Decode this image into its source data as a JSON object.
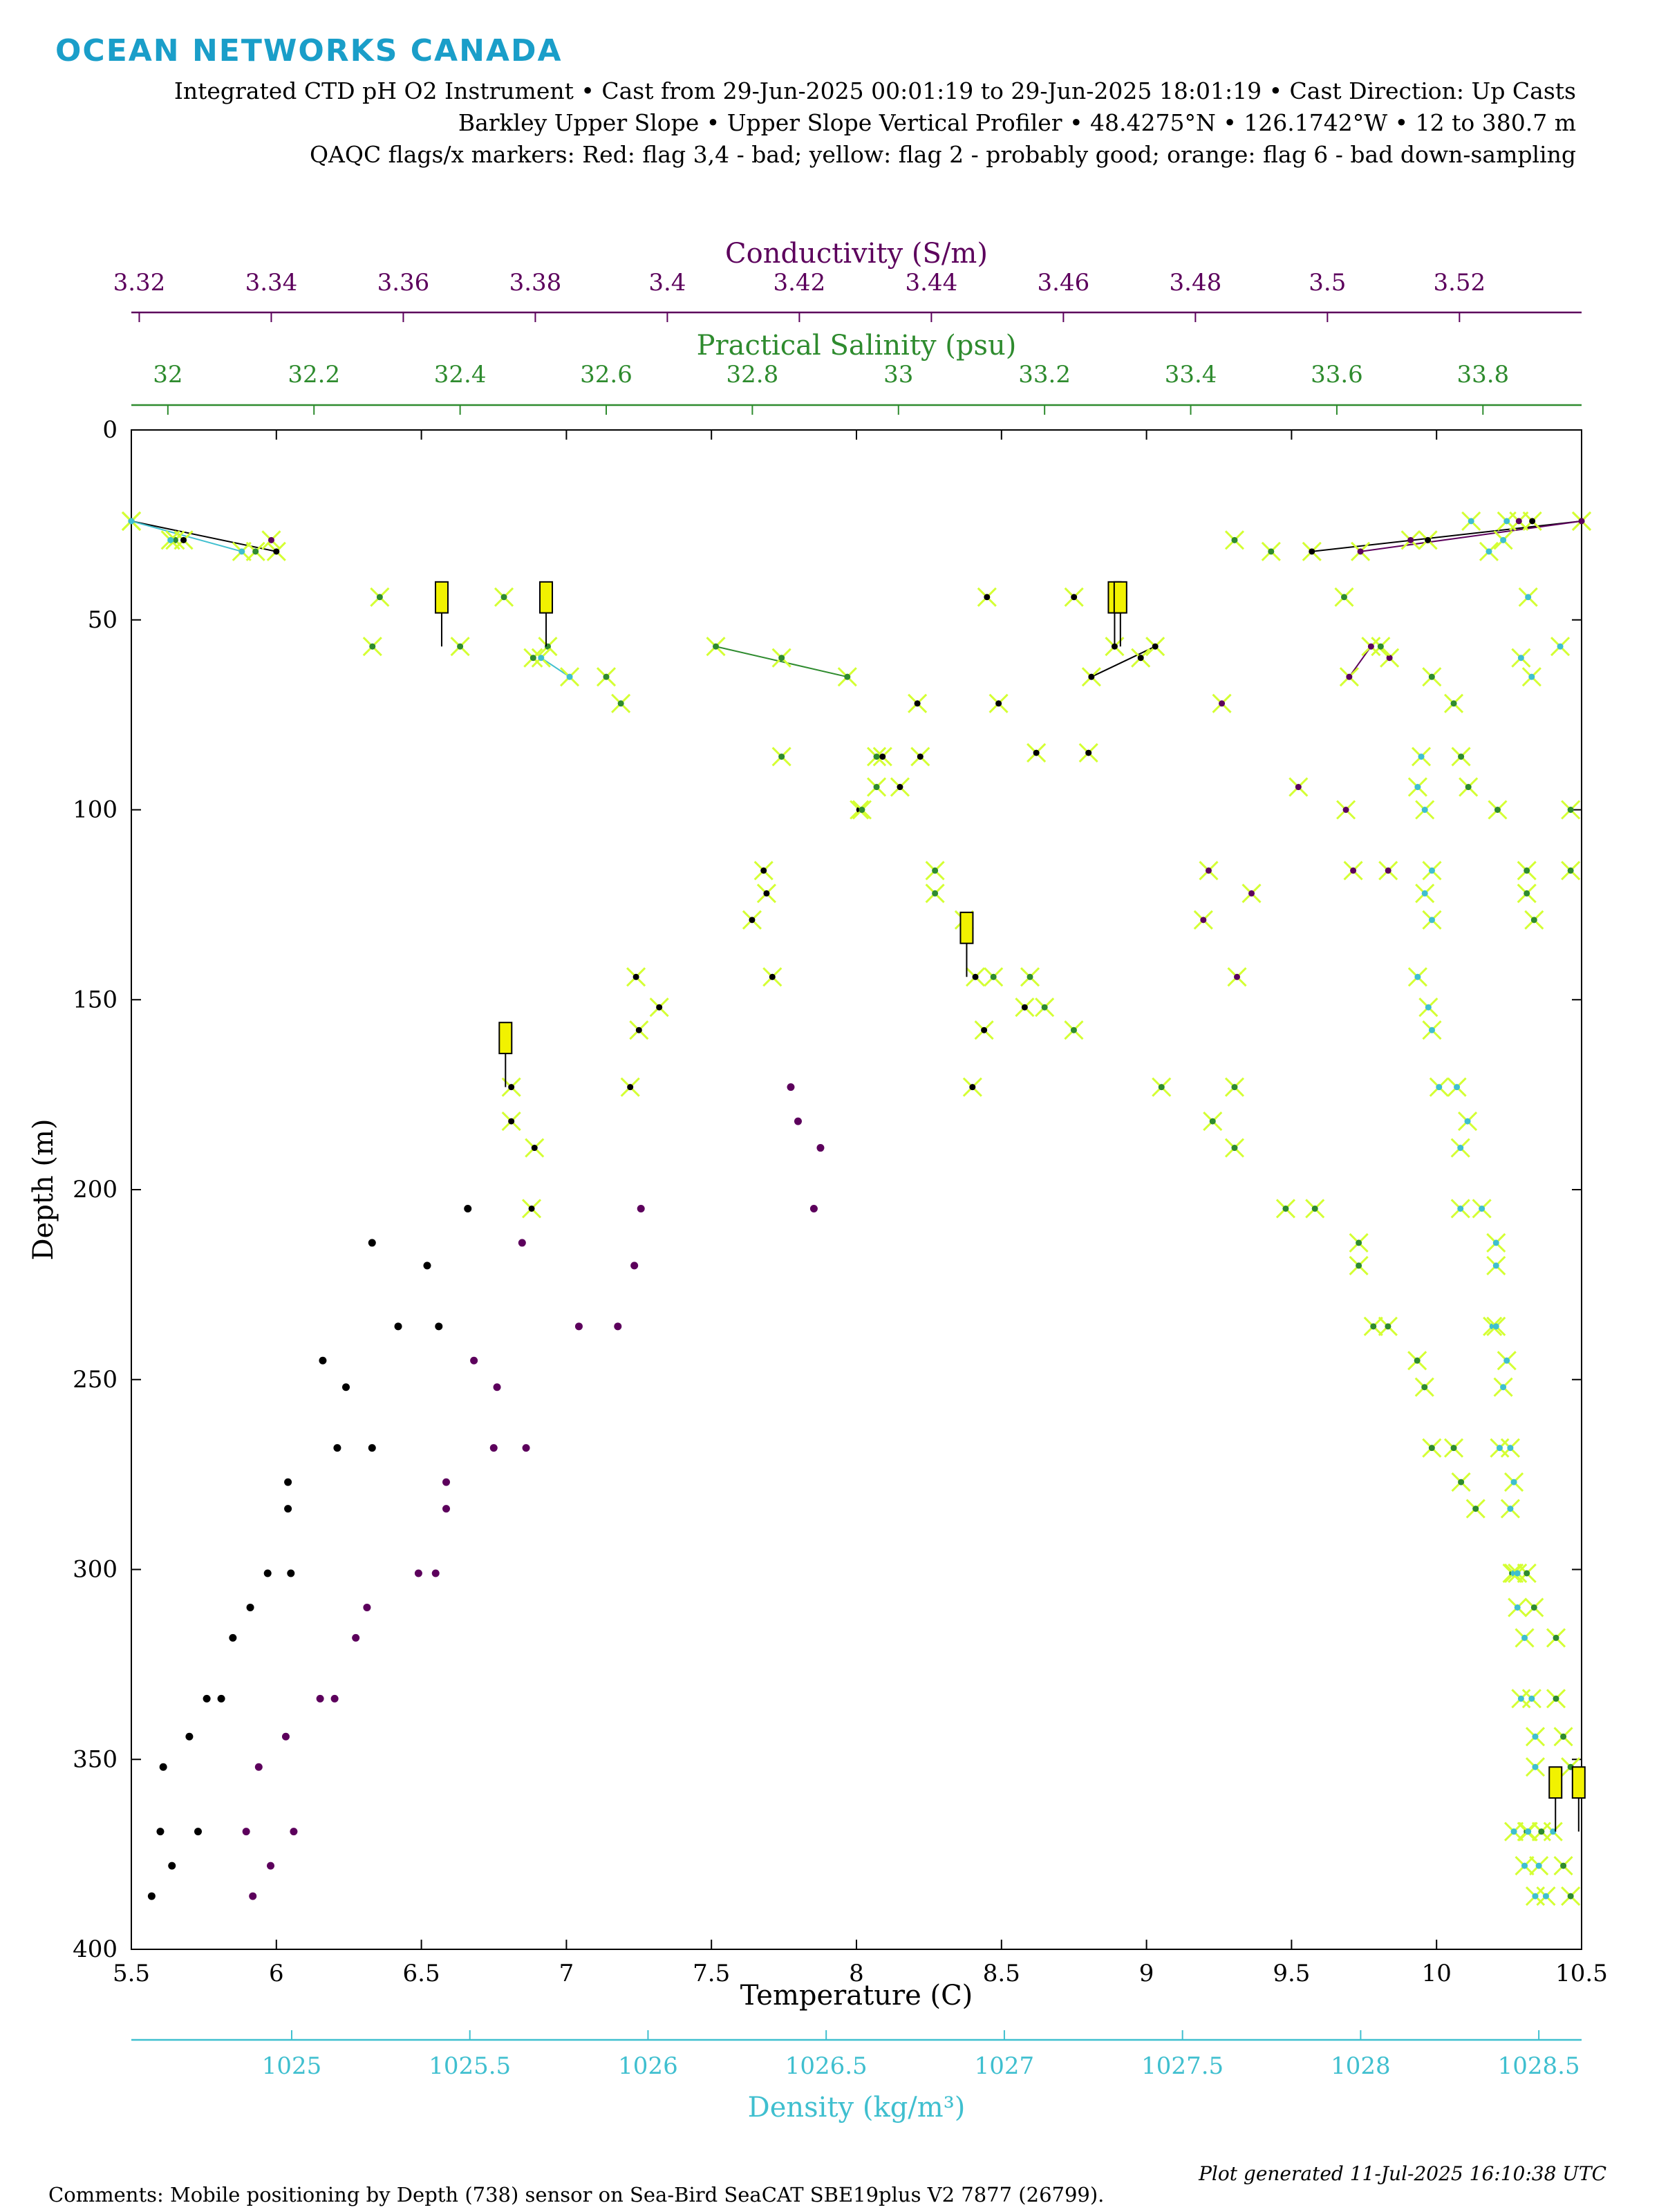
{
  "logo": "OCEAN NETWORKS CANADA",
  "header": {
    "line1": "Integrated CTD pH O2 Instrument • Cast from 29-Jun-2025 00:01:19 to 29-Jun-2025 18:01:19 • Cast Direction: Up Casts",
    "line2": "Barkley Upper Slope • Upper Slope Vertical Profiler • 48.4275°N • 126.1742°W • 12 to 380.7 m",
    "line3": "QAQC flags/x markers: Red: flag 3,4 - bad; yellow: flag 2 - probably good; orange: flag 6 - bad down-sampling"
  },
  "footer": {
    "comment": "Comments: Mobile positioning by Depth (738) sensor on Sea-Bird SeaCAT SBE19plus V2 7877 (26799).",
    "generated": "Plot generated 11-Jul-2025 16:10:38 UTC"
  },
  "colors": {
    "temperature": "#000000",
    "conductivity": "#5c005c",
    "salinity": "#2e8b2e",
    "density": "#3fbfcf",
    "flag_yellow": "#f2f200",
    "flag_good_cross": "#d4ff33"
  },
  "chart_data": {
    "type": "scatter",
    "title": "",
    "ylabel": "Depth (m)",
    "ylim": [
      0,
      400
    ],
    "y_reversed": true,
    "y_ticks": [
      "0",
      "50",
      "100",
      "150",
      "200",
      "250",
      "300",
      "350",
      "400"
    ],
    "axes": {
      "temperature": {
        "label": "Temperature (C)",
        "range": [
          5.5,
          10.5
        ],
        "ticks": [
          "5.5",
          "6",
          "6.5",
          "7",
          "7.5",
          "8",
          "8.5",
          "9",
          "9.5",
          "10",
          "10.5"
        ]
      },
      "conductivity": {
        "label": "Conductivity (S/m)",
        "range": [
          3.3188,
          3.5385
        ],
        "ticks": [
          "3.32",
          "3.34",
          "3.36",
          "3.38",
          "3.4",
          "3.42",
          "3.44",
          "3.46",
          "3.48",
          "3.5",
          "3.52"
        ]
      },
      "salinity": {
        "label": "Practical Salinity (psu)",
        "range": [
          31.95,
          33.935
        ],
        "ticks": [
          "32",
          "32.2",
          "32.4",
          "32.6",
          "32.8",
          "33",
          "33.2",
          "33.4",
          "33.6",
          "33.8"
        ]
      },
      "density": {
        "label": "Density (kg/m³)",
        "range": [
          1024.55,
          1028.62
        ],
        "ticks": [
          "1025",
          "1025.5",
          "1026",
          "1026.5",
          "1027",
          "1027.5",
          "1028",
          "1028.5"
        ]
      }
    },
    "series": [
      {
        "name": "Temperature",
        "axis": "temperature",
        "flagged": false,
        "points": [
          [
            6.33,
            214
          ],
          [
            6.66,
            205
          ],
          [
            6.52,
            220
          ],
          [
            6.42,
            236
          ],
          [
            6.56,
            236
          ],
          [
            6.16,
            245
          ],
          [
            6.24,
            252
          ],
          [
            6.21,
            268
          ],
          [
            6.33,
            268
          ],
          [
            6.04,
            277
          ],
          [
            6.04,
            284
          ],
          [
            5.97,
            301
          ],
          [
            6.05,
            301
          ],
          [
            5.91,
            310
          ],
          [
            5.85,
            318
          ],
          [
            5.76,
            334
          ],
          [
            5.81,
            334
          ],
          [
            5.7,
            344
          ],
          [
            5.61,
            352
          ],
          [
            5.6,
            369
          ],
          [
            5.73,
            369
          ],
          [
            5.64,
            378
          ],
          [
            5.57,
            386
          ]
        ],
        "flagged_points": [
          [
            5.5,
            24
          ],
          [
            5.68,
            29
          ],
          [
            6.0,
            32
          ],
          [
            9.57,
            32
          ],
          [
            9.97,
            29
          ],
          [
            10.33,
            24
          ],
          [
            10.5,
            24
          ],
          [
            8.45,
            44
          ],
          [
            8.75,
            44
          ],
          [
            8.89,
            57
          ],
          [
            9.03,
            57
          ],
          [
            8.81,
            65
          ],
          [
            8.98,
            60
          ],
          [
            8.21,
            72
          ],
          [
            8.49,
            72
          ],
          [
            8.62,
            85
          ],
          [
            8.8,
            85
          ],
          [
            8.09,
            86
          ],
          [
            8.22,
            86
          ],
          [
            8.15,
            94
          ],
          [
            8.01,
            100
          ],
          [
            7.64,
            129
          ],
          [
            7.69,
            122
          ],
          [
            7.71,
            144
          ],
          [
            7.68,
            116
          ],
          [
            8.41,
            144
          ],
          [
            8.44,
            158
          ],
          [
            8.58,
            152
          ],
          [
            8.4,
            173
          ],
          [
            7.24,
            144
          ],
          [
            7.32,
            152
          ],
          [
            7.25,
            158
          ],
          [
            7.22,
            173
          ],
          [
            6.81,
            173
          ],
          [
            6.81,
            182
          ],
          [
            6.89,
            189
          ],
          [
            6.88,
            205
          ]
        ]
      },
      {
        "name": "Conductivity",
        "axis": "conductivity",
        "flagged": false,
        "points": [
          [
            3.4187,
            173
          ],
          [
            3.4198,
            182
          ],
          [
            3.4232,
            189
          ],
          [
            3.4222,
            205
          ],
          [
            3.378,
            214
          ],
          [
            3.396,
            205
          ],
          [
            3.395,
            220
          ],
          [
            3.3866,
            236
          ],
          [
            3.3925,
            236
          ],
          [
            3.3707,
            245
          ],
          [
            3.3742,
            252
          ],
          [
            3.3737,
            268
          ],
          [
            3.3786,
            268
          ],
          [
            3.3665,
            277
          ],
          [
            3.3665,
            284
          ],
          [
            3.3623,
            301
          ],
          [
            3.3649,
            301
          ],
          [
            3.3545,
            310
          ],
          [
            3.3528,
            318
          ],
          [
            3.3474,
            334
          ],
          [
            3.3496,
            334
          ],
          [
            3.3422,
            344
          ],
          [
            3.3381,
            352
          ],
          [
            3.3362,
            369
          ],
          [
            3.3434,
            369
          ],
          [
            3.3399,
            378
          ],
          [
            3.3372,
            386
          ]
        ],
        "flagged_points": [
          [
            3.3188,
            24
          ],
          [
            3.34,
            29
          ],
          [
            3.505,
            32
          ],
          [
            3.5126,
            29
          ],
          [
            3.529,
            24
          ],
          [
            3.5385,
            24
          ],
          [
            3.5066,
            57
          ],
          [
            3.5033,
            65
          ],
          [
            3.5094,
            60
          ],
          [
            3.484,
            72
          ],
          [
            3.4956,
            94
          ],
          [
            3.5028,
            100
          ],
          [
            3.482,
            116
          ],
          [
            3.4885,
            122
          ],
          [
            3.4812,
            129
          ],
          [
            3.4863,
            144
          ],
          [
            3.5039,
            116
          ],
          [
            3.5092,
            116
          ]
        ]
      },
      {
        "name": "Practical Salinity",
        "axis": "salinity",
        "flagged": true,
        "points": [
          [
            31.95,
            24
          ],
          [
            32.01,
            29
          ],
          [
            32.12,
            32
          ],
          [
            32.29,
            44
          ],
          [
            32.46,
            44
          ],
          [
            32.28,
            57
          ],
          [
            32.4,
            57
          ],
          [
            32.52,
            57
          ],
          [
            32.5,
            60
          ],
          [
            32.6,
            65
          ],
          [
            32.62,
            72
          ],
          [
            32.75,
            57
          ],
          [
            32.84,
            60
          ],
          [
            32.93,
            65
          ],
          [
            32.84,
            86
          ],
          [
            32.97,
            86
          ],
          [
            32.97,
            94
          ],
          [
            32.95,
            100
          ],
          [
            33.05,
            116
          ],
          [
            33.05,
            122
          ],
          [
            33.09,
            129
          ],
          [
            33.13,
            144
          ],
          [
            33.18,
            144
          ],
          [
            33.2,
            152
          ],
          [
            33.24,
            158
          ],
          [
            33.36,
            173
          ],
          [
            33.46,
            173
          ],
          [
            33.43,
            182
          ],
          [
            33.46,
            189
          ],
          [
            33.53,
            205
          ],
          [
            33.57,
            205
          ],
          [
            33.63,
            214
          ],
          [
            33.63,
            220
          ],
          [
            33.65,
            236
          ],
          [
            33.67,
            236
          ],
          [
            33.71,
            245
          ],
          [
            33.72,
            252
          ],
          [
            33.73,
            268
          ],
          [
            33.76,
            268
          ],
          [
            33.77,
            277
          ],
          [
            33.79,
            284
          ],
          [
            33.84,
            301
          ],
          [
            33.86,
            301
          ],
          [
            33.87,
            310
          ],
          [
            33.9,
            318
          ],
          [
            33.9,
            334
          ],
          [
            33.91,
            344
          ],
          [
            33.92,
            352
          ],
          [
            33.86,
            369
          ],
          [
            33.88,
            369
          ],
          [
            33.91,
            378
          ],
          [
            33.92,
            386
          ],
          [
            33.46,
            29
          ],
          [
            33.51,
            32
          ],
          [
            33.61,
            44
          ],
          [
            33.66,
            57
          ],
          [
            33.73,
            65
          ],
          [
            33.76,
            72
          ],
          [
            33.77,
            86
          ],
          [
            33.78,
            94
          ],
          [
            33.82,
            100
          ],
          [
            33.86,
            116
          ],
          [
            33.86,
            122
          ],
          [
            33.87,
            129
          ],
          [
            33.92,
            116
          ],
          [
            33.92,
            100
          ]
        ]
      },
      {
        "name": "Density",
        "axis": "density",
        "flagged": true,
        "points": [
          [
            1028.31,
            24
          ],
          [
            1028.41,
            24
          ],
          [
            1028.4,
            29
          ],
          [
            1028.36,
            32
          ],
          [
            1028.47,
            44
          ],
          [
            1028.56,
            57
          ],
          [
            1028.45,
            60
          ],
          [
            1028.48,
            65
          ],
          [
            1028.17,
            86
          ],
          [
            1028.16,
            94
          ],
          [
            1028.18,
            100
          ],
          [
            1028.2,
            116
          ],
          [
            1028.18,
            122
          ],
          [
            1028.2,
            129
          ],
          [
            1028.16,
            144
          ],
          [
            1028.19,
            152
          ],
          [
            1028.2,
            158
          ],
          [
            1028.22,
            173
          ],
          [
            1028.27,
            173
          ],
          [
            1028.3,
            182
          ],
          [
            1028.28,
            189
          ],
          [
            1028.28,
            205
          ],
          [
            1028.34,
            205
          ],
          [
            1028.38,
            214
          ],
          [
            1028.38,
            220
          ],
          [
            1028.37,
            236
          ],
          [
            1028.38,
            236
          ],
          [
            1028.41,
            245
          ],
          [
            1028.4,
            252
          ],
          [
            1028.39,
            268
          ],
          [
            1028.42,
            268
          ],
          [
            1028.43,
            277
          ],
          [
            1028.42,
            284
          ],
          [
            1028.43,
            301
          ],
          [
            1028.44,
            301
          ],
          [
            1028.44,
            310
          ],
          [
            1028.46,
            318
          ],
          [
            1028.45,
            334
          ],
          [
            1028.48,
            334
          ],
          [
            1028.49,
            344
          ],
          [
            1028.49,
            352
          ],
          [
            1028.43,
            369
          ],
          [
            1028.47,
            369
          ],
          [
            1028.54,
            369
          ],
          [
            1028.46,
            378
          ],
          [
            1028.5,
            378
          ],
          [
            1028.49,
            386
          ],
          [
            1028.52,
            386
          ],
          [
            1025.7,
            60
          ],
          [
            1025.78,
            65
          ],
          [
            1024.55,
            24
          ],
          [
            1024.66,
            29
          ],
          [
            1024.86,
            32
          ]
        ]
      }
    ],
    "flag_boxes": [
      {
        "axis": "temperature",
        "x": 6.57,
        "depth_top": 40,
        "depth_bottom": 57
      },
      {
        "axis": "temperature",
        "x": 6.93,
        "depth_top": 40,
        "depth_bottom": 57
      },
      {
        "axis": "temperature",
        "x": 8.89,
        "depth_top": 40,
        "depth_bottom": 57
      },
      {
        "axis": "temperature",
        "x": 8.91,
        "depth_top": 40,
        "depth_bottom": 57
      },
      {
        "axis": "temperature",
        "x": 8.38,
        "depth_top": 127,
        "depth_bottom": 144
      },
      {
        "axis": "temperature",
        "x": 6.79,
        "depth_top": 156,
        "depth_bottom": 173
      },
      {
        "axis": "temperature",
        "x": 10.41,
        "depth_top": 352,
        "depth_bottom": 369
      },
      {
        "axis": "temperature",
        "x": 10.49,
        "depth_top": 352,
        "depth_bottom": 369
      }
    ],
    "grid": false,
    "legend": "none"
  }
}
